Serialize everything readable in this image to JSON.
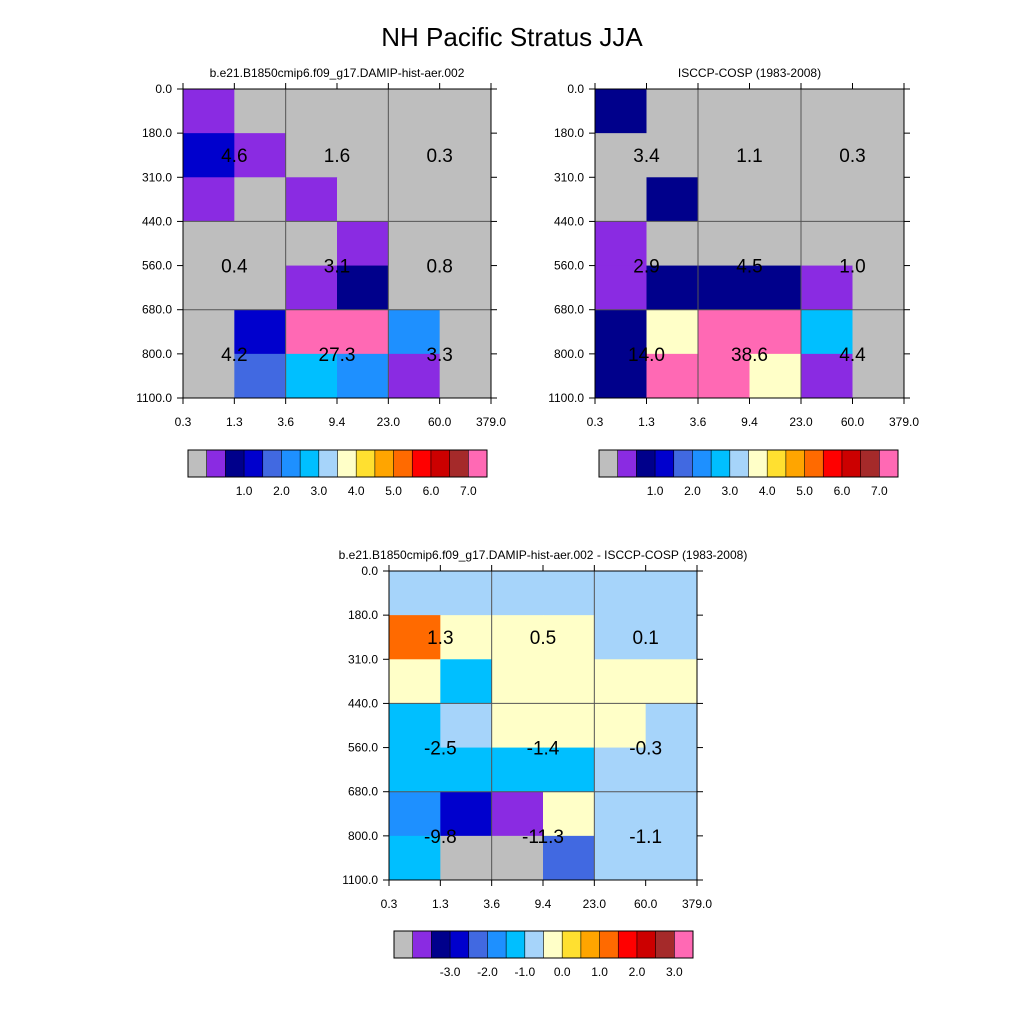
{
  "title": "NH Pacific Stratus JJA",
  "palette": {
    "model": [
      "#bebebe",
      "#8a2be2",
      "#00008b",
      "#0000cd",
      "#4169e1",
      "#1e90ff",
      "#00bfff",
      "#a6d4fa",
      "#ffffc8",
      "#ffe030",
      "#ffa500",
      "#ff6a00",
      "#ff0000",
      "#cc0000",
      "#a52a2a",
      "#ff69b4"
    ],
    "diff": [
      "#bebebe",
      "#8a2be2",
      "#00008b",
      "#0000cd",
      "#4169e1",
      "#1e90ff",
      "#00bfff",
      "#a6d4fa",
      "#ffffc8",
      "#ffe030",
      "#ffa500",
      "#ff6a00",
      "#ff0000",
      "#cc0000",
      "#a52a2a",
      "#ff69b4"
    ]
  },
  "chart_data": [
    {
      "type": "heatmap",
      "id": "model",
      "title": "b.e21.B1850cmip6.f09_g17.DAMIP-hist-aer.002",
      "x_tick_labels": [
        "0.3",
        "1.3",
        "3.6",
        "9.4",
        "23.0",
        "60.0",
        "379.0"
      ],
      "y_tick_labels": [
        "0.0",
        "180.0",
        "310.0",
        "440.0",
        "560.0",
        "680.0",
        "800.0",
        "1100.0"
      ],
      "cell_color_index": [
        [
          1,
          0,
          0,
          0,
          0,
          0
        ],
        [
          3,
          1,
          0,
          0,
          0,
          0
        ],
        [
          1,
          0,
          1,
          0,
          0,
          0
        ],
        [
          0,
          0,
          0,
          1,
          0,
          0
        ],
        [
          0,
          0,
          1,
          2,
          0,
          0
        ],
        [
          0,
          3,
          15,
          15,
          5,
          0
        ],
        [
          0,
          4,
          6,
          5,
          1,
          0
        ]
      ],
      "box_labels": [
        [
          "4.6",
          "1.6",
          "0.3"
        ],
        [
          "0.4",
          "3.1",
          "0.8"
        ],
        [
          "4.2",
          "27.3",
          "3.3"
        ]
      ],
      "colorbar": {
        "labels": [
          "1.0",
          "2.0",
          "3.0",
          "4.0",
          "5.0",
          "6.0",
          "7.0"
        ]
      }
    },
    {
      "type": "heatmap",
      "id": "obs",
      "title": "ISCCP-COSP (1983-2008)",
      "x_tick_labels": [
        "0.3",
        "1.3",
        "3.6",
        "9.4",
        "23.0",
        "60.0",
        "379.0"
      ],
      "y_tick_labels": [
        "0.0",
        "180.0",
        "310.0",
        "440.0",
        "560.0",
        "680.0",
        "800.0",
        "1100.0"
      ],
      "cell_color_index": [
        [
          2,
          0,
          0,
          0,
          0,
          0
        ],
        [
          0,
          0,
          0,
          0,
          0,
          0
        ],
        [
          0,
          2,
          0,
          0,
          0,
          0
        ],
        [
          1,
          0,
          0,
          0,
          0,
          0
        ],
        [
          1,
          2,
          2,
          2,
          1,
          0
        ],
        [
          2,
          8,
          15,
          15,
          6,
          0
        ],
        [
          2,
          15,
          15,
          8,
          1,
          0
        ]
      ],
      "box_labels": [
        [
          "3.4",
          "1.1",
          "0.3"
        ],
        [
          "2.9",
          "4.5",
          "1.0"
        ],
        [
          "14.0",
          "38.6",
          "4.4"
        ]
      ],
      "colorbar": {
        "labels": [
          "1.0",
          "2.0",
          "3.0",
          "4.0",
          "5.0",
          "6.0",
          "7.0"
        ]
      }
    },
    {
      "type": "heatmap",
      "id": "diff",
      "title": "b.e21.B1850cmip6.f09_g17.DAMIP-hist-aer.002 - ISCCP-COSP (1983-2008)",
      "x_tick_labels": [
        "0.3",
        "1.3",
        "3.6",
        "9.4",
        "23.0",
        "60.0",
        "379.0"
      ],
      "y_tick_labels": [
        "0.0",
        "180.0",
        "310.0",
        "440.0",
        "560.0",
        "680.0",
        "800.0",
        "1100.0"
      ],
      "cell_color_index": [
        [
          7,
          7,
          7,
          7,
          7,
          7
        ],
        [
          11,
          8,
          8,
          8,
          7,
          7
        ],
        [
          8,
          6,
          8,
          8,
          8,
          8
        ],
        [
          6,
          7,
          8,
          8,
          8,
          7
        ],
        [
          6,
          6,
          6,
          6,
          7,
          7
        ],
        [
          5,
          3,
          1,
          8,
          7,
          7
        ],
        [
          6,
          0,
          0,
          4,
          7,
          7
        ]
      ],
      "box_labels": [
        [
          "1.3",
          "0.5",
          "0.1"
        ],
        [
          "-2.5",
          "-1.4",
          "-0.3"
        ],
        [
          "-9.8",
          "-11.3",
          "-1.1"
        ]
      ],
      "colorbar": {
        "labels": [
          "-3.0",
          "-2.0",
          "-1.0",
          "0.0",
          "1.0",
          "2.0",
          "3.0"
        ]
      }
    }
  ]
}
